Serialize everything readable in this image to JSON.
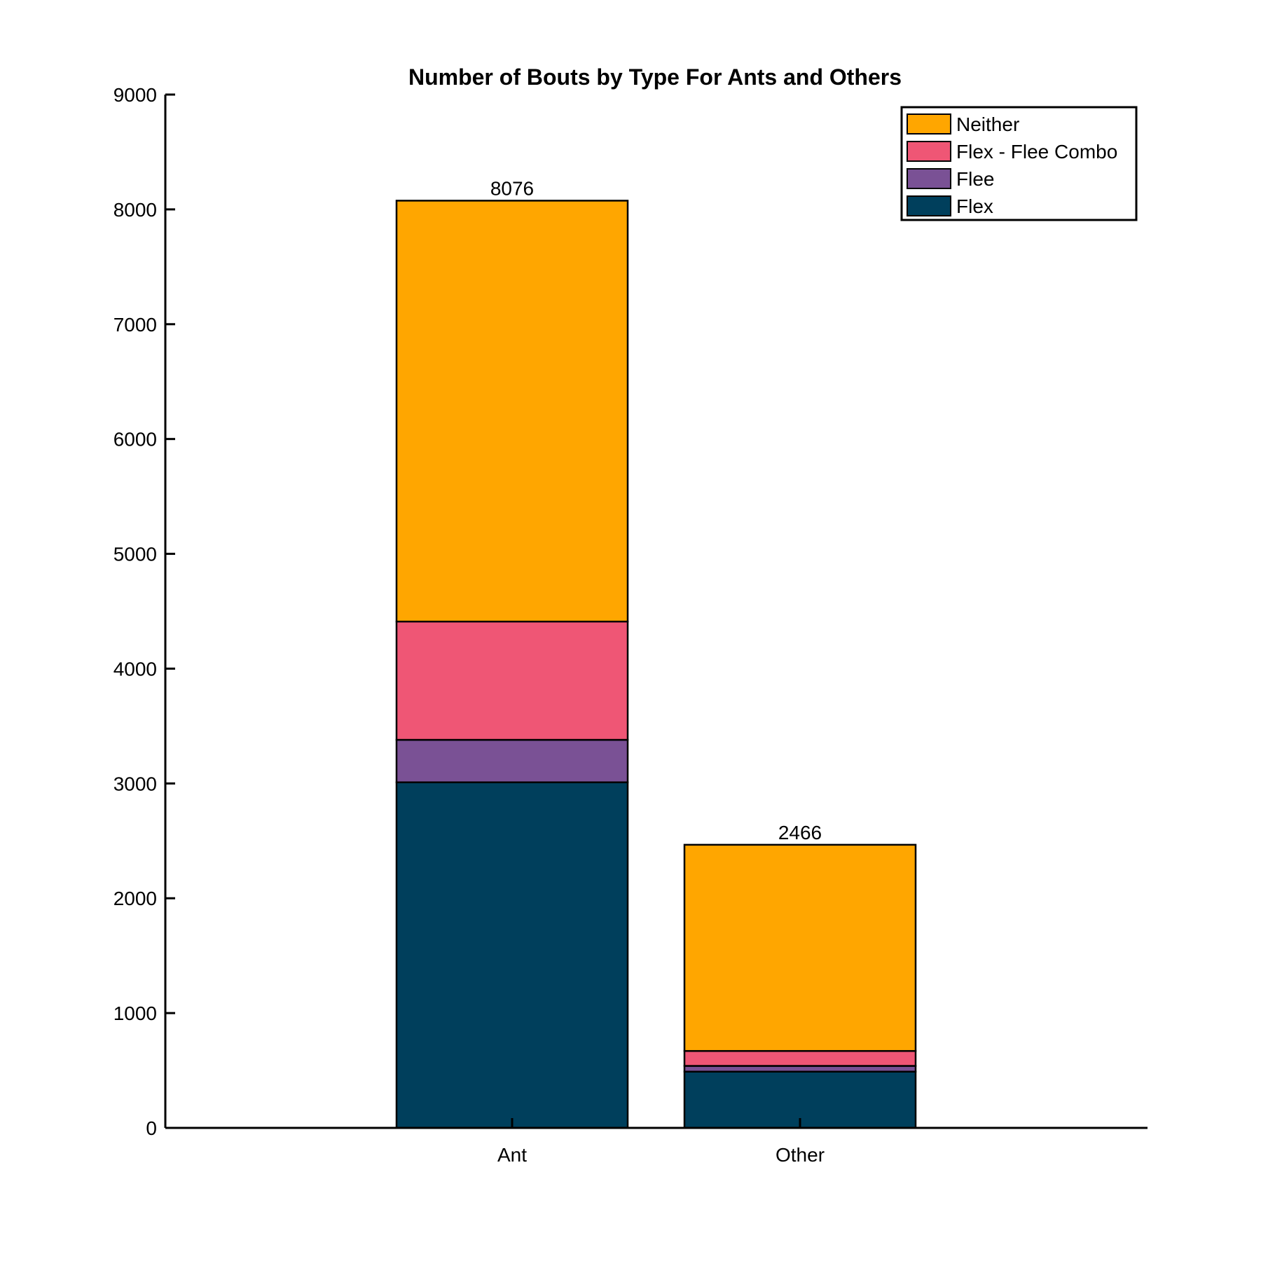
{
  "chart_data": {
    "type": "bar",
    "stacked": true,
    "title": "Number of Bouts by Type For Ants and Others",
    "xlabel": "",
    "ylabel": "",
    "categories": [
      "Ant",
      "Other"
    ],
    "ylim": [
      0,
      9000
    ],
    "yticks": [
      0,
      1000,
      2000,
      3000,
      4000,
      5000,
      6000,
      7000,
      8000,
      9000
    ],
    "grid": false,
    "legend_position": "top-right",
    "series": [
      {
        "name": "Flex",
        "color": "#003F5C",
        "values": [
          3010,
          490
        ]
      },
      {
        "name": "Flee",
        "color": "#7A5195",
        "values": [
          370,
          50
        ]
      },
      {
        "name": "Flex - Flee Combo",
        "color": "#EF5675",
        "values": [
          1030,
          130
        ]
      },
      {
        "name": "Neither",
        "color": "#FFA600",
        "values": [
          3666,
          1796
        ]
      }
    ],
    "totals": [
      "8076",
      "2466"
    ],
    "legend_order": [
      "Neither",
      "Flex - Flee Combo",
      "Flee",
      "Flex"
    ]
  }
}
